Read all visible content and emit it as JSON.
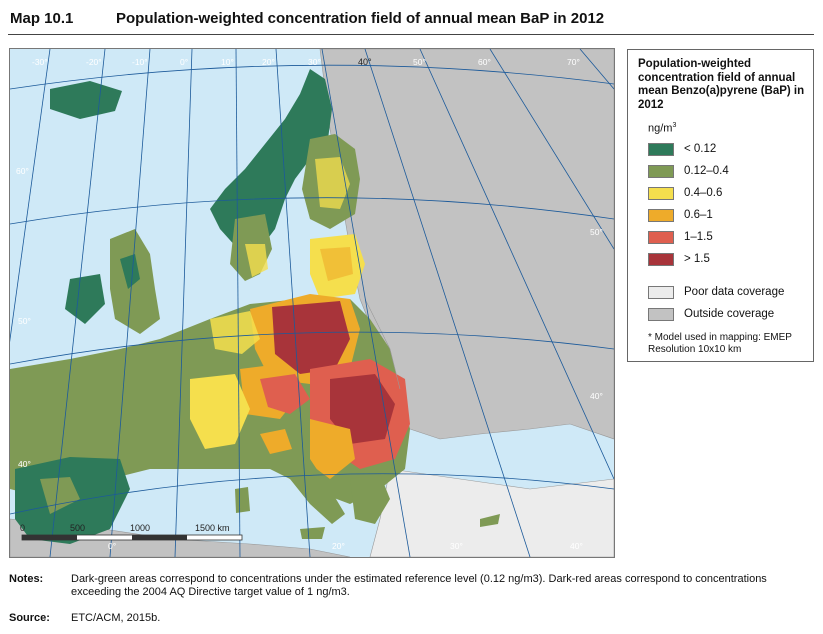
{
  "header": {
    "map_label": "Map 10.1",
    "title": "Population-weighted concentration field of annual mean BaP in 2012"
  },
  "map": {
    "longitude_labels": [
      "-30°",
      "-20°",
      "-10°",
      "0°",
      "10°",
      "20°",
      "30°",
      "40°",
      "50°",
      "60°",
      "70°"
    ],
    "latitude_labels": [
      "60°",
      "50°",
      "40°",
      "50°",
      "40°"
    ],
    "bottom_labels": [
      "0°",
      "20°",
      "30°",
      "40°"
    ],
    "scale_bar": {
      "labels": [
        "0",
        "500",
        "1000",
        "1500 km"
      ]
    }
  },
  "legend": {
    "title": "Population-weighted concentration field of annual mean Benzo(a)pyrene (BaP) in 2012",
    "unit_base": "ng/m",
    "unit_exp": "3",
    "classes": [
      {
        "label": "< 0.12",
        "color": "#2e7a5a"
      },
      {
        "label": "0.12–0.4",
        "color": "#7f9a55"
      },
      {
        "label": "0.4–0.6",
        "color": "#f5df4d"
      },
      {
        "label": "0.6–1",
        "color": "#eeab2a"
      },
      {
        "label": "1–1.5",
        "color": "#df5f4f"
      },
      {
        "label": "> 1.5",
        "color": "#a8343a"
      }
    ],
    "coverage": [
      {
        "label": "Poor data coverage",
        "color": "#ececec"
      },
      {
        "label": "Outside coverage",
        "color": "#c2c2c2"
      }
    ],
    "note": "* Model used in mapping: EMEP Resolution 10x10 km"
  },
  "notes": {
    "label": "Notes:",
    "text": "Dark-green areas correspond to concentrations under the estimated reference level (0.12 ng/m3). Dark-red areas correspond to concentrations exceeding the 2004 AQ Directive target value of 1 ng/m3."
  },
  "source": {
    "label": "Source:",
    "text": "ETC/ACM, 2015b."
  }
}
